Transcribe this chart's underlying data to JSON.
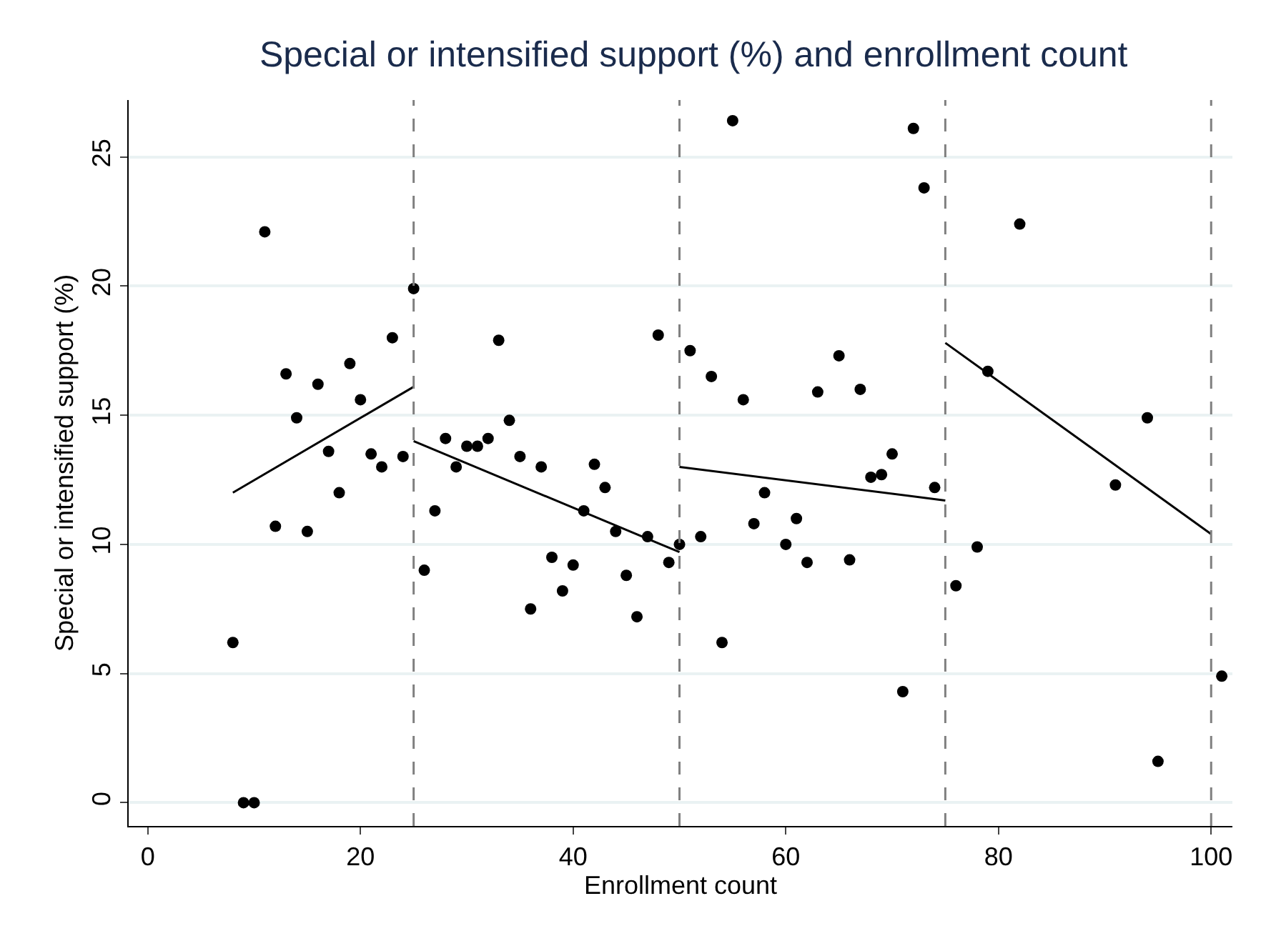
{
  "chart_data": {
    "type": "scatter",
    "title": "Special or intensified support (%) and enrollment count",
    "xlabel": "Enrollment count",
    "ylabel": "Special or intensified support (%)",
    "xlim": [
      -1.8,
      102
    ],
    "ylim": [
      -0.9,
      27.2
    ],
    "xticks": [
      0,
      20,
      40,
      60,
      80,
      100
    ],
    "yticks": [
      0,
      5,
      10,
      15,
      20,
      25
    ],
    "grid": "y",
    "series": [
      {
        "marker": "circle",
        "color": "#000000",
        "x": [
          8,
          9,
          10,
          11,
          12,
          13,
          14,
          15,
          16,
          17,
          18,
          19,
          20,
          21,
          22,
          23,
          24,
          25,
          26,
          27,
          28,
          29,
          30,
          31,
          32,
          33,
          34,
          35,
          36,
          37,
          38,
          39,
          40,
          41,
          42,
          43,
          44,
          45,
          46,
          47,
          48,
          49,
          50,
          51,
          52,
          53,
          54,
          55,
          56,
          57,
          58,
          60,
          61,
          62,
          63,
          65,
          66,
          67,
          68,
          69,
          70,
          71,
          72,
          73,
          74,
          76,
          78,
          79,
          82,
          91,
          94,
          95,
          101
        ],
        "values": [
          6.2,
          0,
          0,
          22.1,
          10.7,
          16.6,
          14.9,
          10.5,
          16.2,
          13.6,
          12.0,
          17.0,
          15.6,
          13.5,
          13.0,
          18.0,
          13.4,
          19.9,
          9.0,
          11.3,
          14.1,
          13.0,
          13.8,
          13.8,
          14.1,
          17.9,
          14.8,
          13.4,
          7.5,
          13.0,
          9.5,
          8.2,
          9.2,
          11.3,
          13.1,
          12.2,
          10.5,
          8.8,
          7.2,
          10.3,
          18.1,
          9.3,
          10.0,
          17.5,
          10.3,
          16.5,
          6.2,
          26.4,
          15.6,
          10.8,
          12.0,
          10.0,
          11.0,
          9.3,
          15.9,
          17.3,
          9.4,
          16.0,
          12.6,
          12.7,
          13.5,
          4.3,
          26.1,
          23.8,
          12.2,
          8.4,
          9.9,
          16.7,
          22.4,
          12.3,
          14.9,
          1.6,
          4.9
        ]
      },
      {
        "type": "line",
        "color": "#000000",
        "x": [
          8,
          25
        ],
        "values": [
          12.0,
          16.1
        ],
        "marker": "none"
      },
      {
        "type": "line",
        "color": "#000000",
        "x": [
          25,
          50
        ],
        "values": [
          14.0,
          9.7
        ],
        "marker": "none"
      },
      {
        "type": "line",
        "color": "#000000",
        "x": [
          50,
          75
        ],
        "values": [
          13.0,
          11.7
        ],
        "marker": "none"
      },
      {
        "type": "line",
        "color": "#000000",
        "x": [
          75,
          100
        ],
        "values": [
          17.8,
          10.4
        ],
        "marker": "none"
      }
    ],
    "ref_lines": [
      {
        "axis": "x",
        "value": 25,
        "color": "#808080",
        "line_style": "dashed"
      },
      {
        "axis": "x",
        "value": 50,
        "color": "#808080",
        "line_style": "dashed"
      },
      {
        "axis": "x",
        "value": 75,
        "color": "#808080",
        "line_style": "dashed"
      },
      {
        "axis": "x",
        "value": 100,
        "color": "#808080",
        "line_style": "dashed"
      }
    ]
  }
}
